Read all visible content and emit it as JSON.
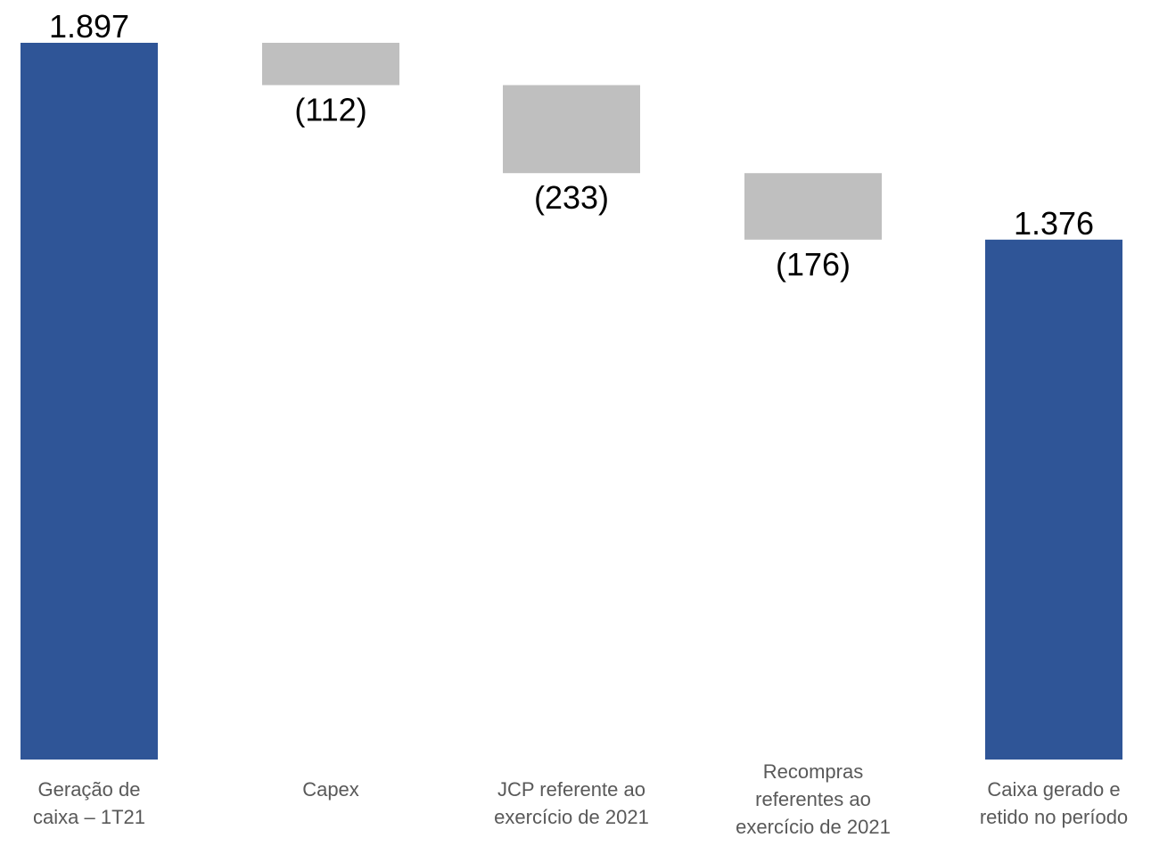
{
  "chart_data": {
    "type": "waterfall",
    "categories": [
      [
        "Geração de",
        "caixa – 1T21"
      ],
      [
        "Capex"
      ],
      [
        "JCP referente ao",
        "exercício de 2021"
      ],
      [
        "Recompras",
        "referentes ao",
        "exercício de 2021"
      ],
      [
        "Caixa gerado e",
        "retido no período"
      ]
    ],
    "values": [
      1897,
      -112,
      -233,
      -176,
      1376
    ],
    "kinds": [
      "total",
      "delta",
      "delta",
      "delta",
      "total"
    ],
    "data_labels": [
      "1.897",
      "(112)",
      "(233)",
      "(176)",
      "1.376"
    ],
    "ylim": [
      0,
      1897
    ],
    "grid": false,
    "legend": "none",
    "colors": {
      "total": "#2F5597",
      "delta": "#BFBFBF"
    }
  }
}
